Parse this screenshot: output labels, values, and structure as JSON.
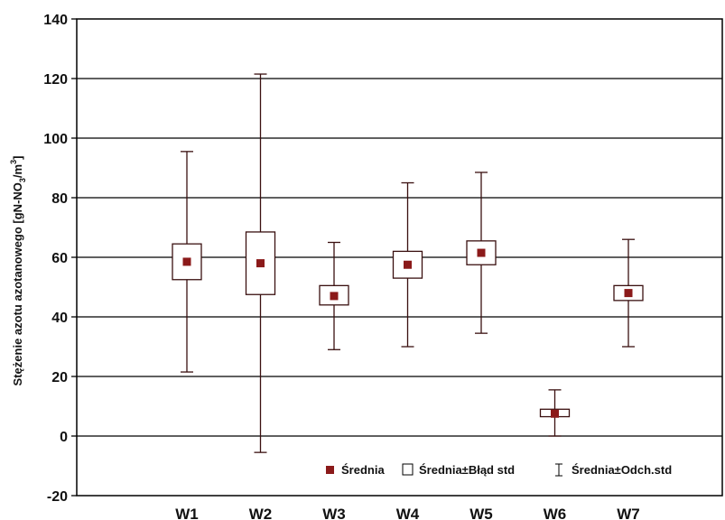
{
  "chart_data": {
    "type": "box",
    "ylabel_main": "Stężenie azotu azotanowego [gN-NO",
    "ylabel_sub": "3",
    "ylabel_mid": "/m",
    "ylabel_sup": "3",
    "ylabel_end": "]",
    "ylim": [
      -20,
      140
    ],
    "yticks": [
      -20,
      0,
      20,
      40,
      60,
      80,
      100,
      120,
      140
    ],
    "grid": true,
    "categories": [
      "W1",
      "W2",
      "W3",
      "W4",
      "W5",
      "W6",
      "W7"
    ],
    "series": [
      {
        "category": "W1",
        "mean": 58.5,
        "se_low": 52.5,
        "se_high": 64.5,
        "sd_low": 21.5,
        "sd_high": 95.5
      },
      {
        "category": "W2",
        "mean": 58.0,
        "se_low": 47.5,
        "se_high": 68.5,
        "sd_low": -5.5,
        "sd_high": 121.5
      },
      {
        "category": "W3",
        "mean": 47.0,
        "se_low": 44.0,
        "se_high": 50.5,
        "sd_low": 29.0,
        "sd_high": 65.0
      },
      {
        "category": "W4",
        "mean": 57.5,
        "se_low": 53.0,
        "se_high": 62.0,
        "sd_low": 30.0,
        "sd_high": 85.0
      },
      {
        "category": "W5",
        "mean": 61.5,
        "se_low": 57.5,
        "se_high": 65.5,
        "sd_low": 34.5,
        "sd_high": 88.5
      },
      {
        "category": "W6",
        "mean": 7.5,
        "se_low": 6.5,
        "se_high": 9.0,
        "sd_low": 0.0,
        "sd_high": 15.5
      },
      {
        "category": "W7",
        "mean": 48.0,
        "se_low": 45.5,
        "se_high": 50.5,
        "sd_low": 30.0,
        "sd_high": 66.0
      }
    ],
    "legend": {
      "placement": "bottom-right",
      "mean_label": "Średnia",
      "se_label": "Średnia±Błąd std",
      "sd_label": "Średnia±Odch.std"
    },
    "colors": {
      "mean_marker": "#8b1a1a",
      "lines": "#3a1010",
      "grid": "#000000",
      "box_fill": "#ffffff"
    }
  }
}
